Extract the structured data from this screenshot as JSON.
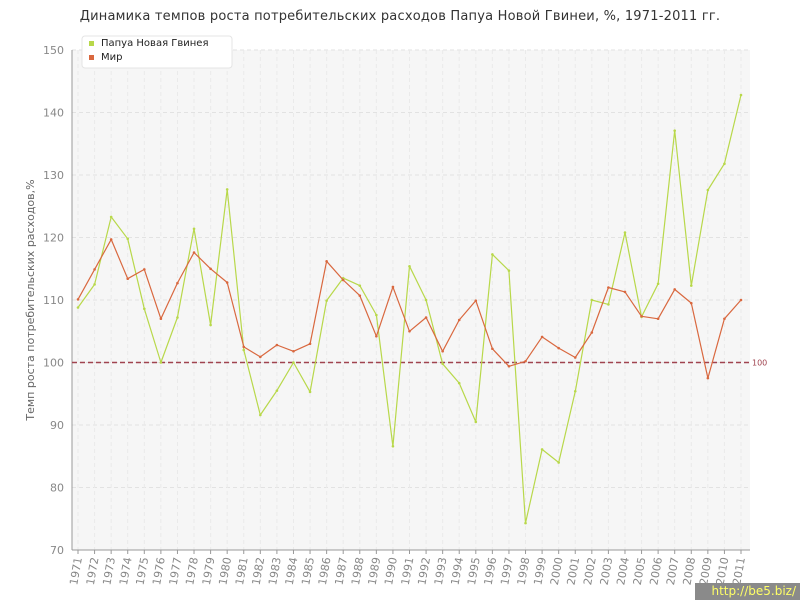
{
  "chart_data": {
    "type": "line",
    "title": "Динамика темпов роста потребительских расходов Папуа Новой Гвинеи, %, 1971-2011 гг.",
    "ylabel": "Темп роста потребительских расходов,%",
    "xlabel": "",
    "ylim": [
      70,
      150
    ],
    "yticks": [
      70,
      80,
      90,
      100,
      110,
      120,
      130,
      140,
      150
    ],
    "grid": true,
    "legend_position": "top-left",
    "reference_line": {
      "value": 100,
      "label": "100",
      "color": "#a0434f"
    },
    "x": [
      1971,
      1972,
      1973,
      1974,
      1975,
      1976,
      1977,
      1978,
      1979,
      1980,
      1981,
      1982,
      1983,
      1984,
      1985,
      1986,
      1987,
      1988,
      1989,
      1990,
      1991,
      1992,
      1993,
      1994,
      1995,
      1996,
      1997,
      1998,
      1999,
      2000,
      2001,
      2002,
      2003,
      2004,
      2005,
      2006,
      2007,
      2008,
      2009,
      2010,
      2011
    ],
    "series": [
      {
        "name": "Папуа Новая Гвинея",
        "color": "#b8d84a",
        "values": [
          108.8,
          112.5,
          123.3,
          119.8,
          108.6,
          100.0,
          107.2,
          121.4,
          106.0,
          127.7,
          102.0,
          91.6,
          95.5,
          100.0,
          95.3,
          109.9,
          113.5,
          112.3,
          107.6,
          86.6,
          115.4,
          110.0,
          99.8,
          96.7,
          90.5,
          117.3,
          114.7,
          74.3,
          86.1,
          84.0,
          95.4,
          110.0,
          109.3,
          120.8,
          107.3,
          112.6,
          137.1,
          112.3,
          127.6,
          131.8,
          142.8
        ]
      },
      {
        "name": "Мир",
        "color": "#d9683f",
        "values": [
          110.1,
          114.9,
          119.7,
          113.4,
          114.9,
          107.0,
          112.7,
          117.6,
          115.0,
          112.8,
          102.5,
          100.9,
          102.8,
          101.8,
          103.0,
          116.2,
          113.2,
          110.7,
          104.2,
          112.1,
          105.0,
          107.2,
          101.8,
          106.8,
          109.9,
          102.2,
          99.4,
          100.2,
          104.1,
          102.3,
          100.8,
          104.8,
          112.0,
          111.3,
          107.4,
          107.0,
          111.7,
          109.5,
          97.5,
          107.0,
          110.0
        ]
      }
    ]
  },
  "watermark": "http://be5.biz/"
}
